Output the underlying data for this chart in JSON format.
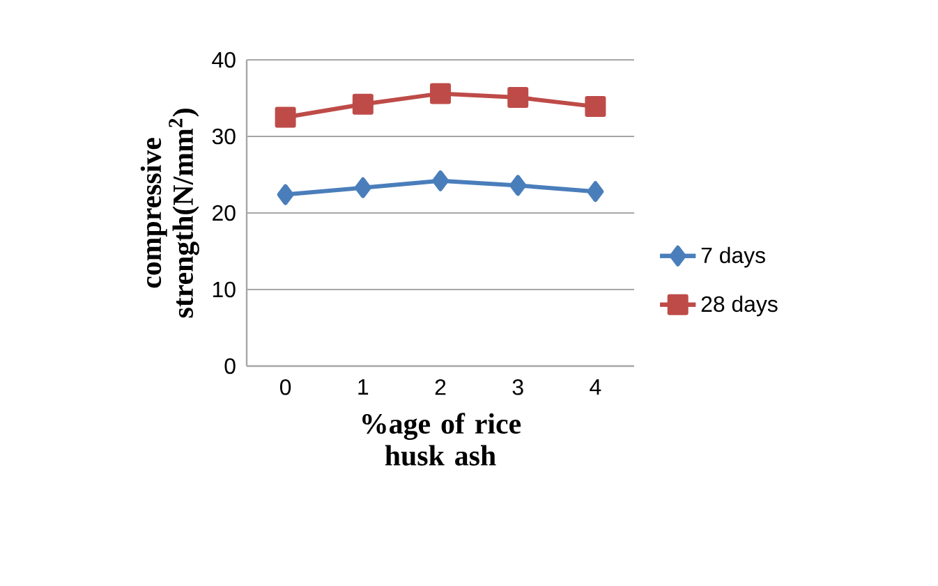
{
  "chart_data": {
    "type": "line",
    "xlabel": "%age of rice husk ash",
    "ylabel": "compressive strength(N/mm$^{2}$)",
    "categories": [
      "0",
      "1",
      "2",
      "3",
      "4"
    ],
    "series": [
      {
        "name": "7 days",
        "color": "#4a7ebb",
        "marker": "diamond",
        "values": [
          22.4,
          23.3,
          24.2,
          23.6,
          22.8
        ]
      },
      {
        "name": "28 days",
        "color": "#be4b48",
        "marker": "square",
        "values": [
          32.5,
          34.2,
          35.6,
          35.1,
          33.9
        ]
      }
    ],
    "ylim": [
      0,
      40
    ],
    "yticks": [
      0,
      10,
      20,
      30,
      40
    ],
    "grid": "y",
    "legend": "right"
  }
}
